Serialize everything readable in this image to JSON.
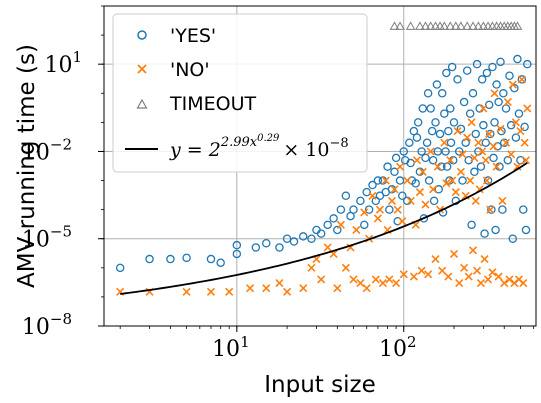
{
  "chart_data": {
    "type": "scatter",
    "xlabel": "Input size",
    "ylabel": "AMV running time (s)",
    "x_scale": "log",
    "y_scale": "log",
    "xlim": [
      1.6,
      620
    ],
    "ylim": [
      1e-08,
      1000
    ],
    "grid": true,
    "legend_position": "top-left",
    "x_ticks": [
      {
        "value": 10,
        "base": "10",
        "exp": "1"
      },
      {
        "value": 100,
        "base": "10",
        "exp": "2"
      }
    ],
    "y_ticks": [
      {
        "value": 1e-08,
        "base": "10",
        "exp": "−8"
      },
      {
        "value": 1e-05,
        "base": "10",
        "exp": "−5"
      },
      {
        "value": 0.01,
        "base": "10",
        "exp": "−2"
      },
      {
        "value": 10,
        "base": "10",
        "exp": "1"
      }
    ],
    "series": [
      {
        "name": "'YES'",
        "marker": "circle",
        "color": "#1f77b4",
        "points": [
          [
            2,
            1e-06
          ],
          [
            3,
            2e-06
          ],
          [
            4,
            2e-06
          ],
          [
            5,
            2.2e-06
          ],
          [
            7,
            2e-06
          ],
          [
            8,
            1.5e-06
          ],
          [
            10,
            3e-06
          ],
          [
            10,
            6e-06
          ],
          [
            13,
            5e-06
          ],
          [
            15,
            7e-06
          ],
          [
            18,
            5e-06
          ],
          [
            20,
            1e-05
          ],
          [
            22,
            8e-06
          ],
          [
            25,
            1.2e-05
          ],
          [
            28,
            1e-05
          ],
          [
            30,
            2e-05
          ],
          [
            32,
            1.5e-05
          ],
          [
            35,
            3e-05
          ],
          [
            38,
            5e-05
          ],
          [
            40,
            2e-05
          ],
          [
            42,
            0.0001
          ],
          [
            45,
            0.0003
          ],
          [
            48,
            6e-05
          ],
          [
            50,
            0.0001
          ],
          [
            55,
            0.0002
          ],
          [
            58,
            3e-05
          ],
          [
            60,
            0.0004
          ],
          [
            62,
            0.0001
          ],
          [
            65,
            0.0007
          ],
          [
            68,
            0.0002
          ],
          [
            70,
            0.001
          ],
          [
            72,
            0.0003
          ],
          [
            75,
            0.001
          ],
          [
            78,
            0.0004
          ],
          [
            80,
            0.003
          ],
          [
            82,
            0.0001
          ],
          [
            85,
            0.0005
          ],
          [
            88,
            0.002
          ],
          [
            90,
            0.006
          ],
          [
            92,
            4e-05
          ],
          [
            95,
            0.001
          ],
          [
            98,
            0.0003
          ],
          [
            100,
            0.01
          ],
          [
            102,
            0.005
          ],
          [
            105,
            0.0002
          ],
          [
            108,
            0.02
          ],
          [
            110,
            0.004
          ],
          [
            112,
            0.001
          ],
          [
            115,
            0.05
          ],
          [
            118,
            0.0008
          ],
          [
            120,
            0.03
          ],
          [
            122,
            0.1
          ],
          [
            125,
            0.002
          ],
          [
            128,
            0.01
          ],
          [
            130,
            0.3
          ],
          [
            132,
            5e-05
          ],
          [
            135,
            0.006
          ],
          [
            138,
            0.02
          ],
          [
            140,
            1
          ],
          [
            142,
            0.001
          ],
          [
            145,
            0.3
          ],
          [
            148,
            0.05
          ],
          [
            150,
            0.005
          ],
          [
            152,
            0.0002
          ],
          [
            155,
            0.1
          ],
          [
            158,
            2
          ],
          [
            160,
            0.01
          ],
          [
            162,
            0.0005
          ],
          [
            165,
            0.04
          ],
          [
            168,
            0.003
          ],
          [
            170,
            1
          ],
          [
            172,
            8e-05
          ],
          [
            175,
            0.2
          ],
          [
            178,
            0.01
          ],
          [
            180,
            5
          ],
          [
            182,
            0.003
          ],
          [
            185,
            0.05
          ],
          [
            188,
            0.001
          ],
          [
            190,
            0.3
          ],
          [
            192,
            0.02
          ],
          [
            195,
            8
          ],
          [
            198,
            0.005
          ],
          [
            200,
            0.1
          ],
          [
            205,
            0.0002
          ],
          [
            210,
            3
          ],
          [
            215,
            0.01
          ],
          [
            220,
            0.06
          ],
          [
            225,
            0.001
          ],
          [
            230,
            0.5
          ],
          [
            235,
            0.02
          ],
          [
            240,
            6
          ],
          [
            245,
            0.005
          ],
          [
            250,
            0.2
          ],
          [
            255,
            3e-05
          ],
          [
            260,
            1
          ],
          [
            265,
            0.002
          ],
          [
            270,
            0.04
          ],
          [
            275,
            10
          ],
          [
            280,
            0.01
          ],
          [
            285,
            0.3
          ],
          [
            290,
            0.003
          ],
          [
            295,
            3
          ],
          [
            300,
            0.08
          ],
          [
            305,
            1.5e-05
          ],
          [
            310,
            0.02
          ],
          [
            315,
            5
          ],
          [
            320,
            0.001
          ],
          [
            325,
            0.4
          ],
          [
            330,
            0.04
          ],
          [
            335,
            0.0001
          ],
          [
            340,
            8
          ],
          [
            345,
            0.006
          ],
          [
            350,
            0.1
          ],
          [
            355,
            2e-05
          ],
          [
            360,
            2
          ],
          [
            365,
            0.015
          ],
          [
            370,
            0.5
          ],
          [
            375,
            0.003
          ],
          [
            380,
            12
          ],
          [
            385,
            0.05
          ],
          [
            390,
            0.0001
          ],
          [
            395,
            1
          ],
          [
            400,
            0.02
          ],
          [
            410,
            0.3
          ],
          [
            420,
            0.005
          ],
          [
            430,
            4
          ],
          [
            440,
            0.08
          ],
          [
            450,
            1e-05
          ],
          [
            460,
            1.5
          ],
          [
            470,
            0.03
          ],
          [
            480,
            15
          ],
          [
            490,
            0.2
          ],
          [
            500,
            0.005
          ],
          [
            510,
            3
          ],
          [
            520,
            0.0001
          ],
          [
            530,
            0.07
          ],
          [
            540,
            2e-05
          ],
          [
            550,
            10
          ]
        ]
      },
      {
        "name": "'NO'",
        "marker": "x",
        "color": "#ff7f0e",
        "points": [
          [
            2,
            1.5e-07
          ],
          [
            3,
            1.5e-07
          ],
          [
            5,
            1.5e-07
          ],
          [
            7,
            1.5e-07
          ],
          [
            9,
            1.5e-07
          ],
          [
            12,
            2e-07
          ],
          [
            15,
            2e-07
          ],
          [
            18,
            3e-07
          ],
          [
            20,
            1.5e-07
          ],
          [
            25,
            2e-07
          ],
          [
            28,
            1e-06
          ],
          [
            30,
            2e-06
          ],
          [
            32,
            4e-07
          ],
          [
            35,
            5e-06
          ],
          [
            38,
            3e-06
          ],
          [
            40,
            2e-07
          ],
          [
            42,
            3e-05
          ],
          [
            45,
            1e-06
          ],
          [
            48,
            5e-06
          ],
          [
            50,
            4e-07
          ],
          [
            52,
            2e-05
          ],
          [
            55,
            3e-07
          ],
          [
            58,
            8e-05
          ],
          [
            60,
            2e-07
          ],
          [
            62,
            1e-05
          ],
          [
            65,
            0.0003
          ],
          [
            68,
            4e-07
          ],
          [
            70,
            5e-05
          ],
          [
            72,
            0.0001
          ],
          [
            75,
            3e-07
          ],
          [
            78,
            0.001
          ],
          [
            80,
            2e-05
          ],
          [
            82,
            4e-07
          ],
          [
            85,
            0.0002
          ],
          [
            88,
            0.0005
          ],
          [
            90,
            3e-07
          ],
          [
            92,
            0.0001
          ],
          [
            95,
            0.003
          ],
          [
            98,
            4e-05
          ],
          [
            100,
            6e-07
          ],
          [
            105,
            0.001
          ],
          [
            110,
            0.0002
          ],
          [
            115,
            5e-07
          ],
          [
            118,
            3e-05
          ],
          [
            120,
            0.005
          ],
          [
            125,
            0.0004
          ],
          [
            128,
            8e-07
          ],
          [
            130,
            0.002
          ],
          [
            135,
            0.00015
          ],
          [
            140,
            6e-07
          ],
          [
            145,
            0.01
          ],
          [
            150,
            0.0005
          ],
          [
            155,
            2e-06
          ],
          [
            160,
            0.003
          ],
          [
            165,
            0.0001
          ],
          [
            170,
            8e-07
          ],
          [
            175,
            0.02
          ],
          [
            180,
            0.0008
          ],
          [
            185,
            5e-07
          ],
          [
            190,
            0.005
          ],
          [
            195,
            0.001
          ],
          [
            200,
            3e-06
          ],
          [
            205,
            0.0004
          ],
          [
            210,
            0.05
          ],
          [
            215,
            3e-07
          ],
          [
            220,
            0.002
          ],
          [
            225,
            0.008
          ],
          [
            230,
            1e-06
          ],
          [
            235,
            0.0003
          ],
          [
            240,
            0.03
          ],
          [
            245,
            5e-07
          ],
          [
            250,
            0.001
          ],
          [
            255,
            0.1
          ],
          [
            260,
            4e-06
          ],
          [
            265,
            0.006
          ],
          [
            270,
            0.0002
          ],
          [
            275,
            8e-07
          ],
          [
            280,
            0.02
          ],
          [
            285,
            0.0005
          ],
          [
            290,
            3e-07
          ],
          [
            295,
            0.01
          ],
          [
            300,
            0.3
          ],
          [
            305,
            2e-06
          ],
          [
            310,
            0.005
          ],
          [
            315,
            0.001
          ],
          [
            320,
            4e-07
          ],
          [
            325,
            0.04
          ],
          [
            330,
            0.0001
          ],
          [
            340,
            7e-07
          ],
          [
            345,
            0.015
          ],
          [
            350,
            1
          ],
          [
            360,
            0.003
          ],
          [
            370,
            5e-07
          ],
          [
            380,
            0.06
          ],
          [
            390,
            0.0002
          ],
          [
            400,
            3e-07
          ],
          [
            410,
            0.02
          ],
          [
            420,
            0.5
          ],
          [
            430,
            4e-07
          ],
          [
            440,
            0.008
          ],
          [
            450,
            2
          ],
          [
            460,
            3e-07
          ],
          [
            470,
            0.1
          ],
          [
            480,
            0.003
          ],
          [
            490,
            4e-07
          ],
          [
            500,
            0.05
          ],
          [
            510,
            3
          ],
          [
            520,
            3e-07
          ],
          [
            530,
            0.02
          ],
          [
            540,
            0.005
          ],
          [
            550,
            0.3
          ]
        ]
      },
      {
        "name": "TIMEOUT",
        "marker": "triangle",
        "color": "#7f7f7f",
        "points": [
          [
            88,
            200
          ],
          [
            95,
            200
          ],
          [
            110,
            200
          ],
          [
            125,
            200
          ],
          [
            135,
            200
          ],
          [
            145,
            200
          ],
          [
            155,
            200
          ],
          [
            165,
            200
          ],
          [
            175,
            200
          ],
          [
            190,
            200
          ],
          [
            205,
            200
          ],
          [
            220,
            200
          ],
          [
            240,
            200
          ],
          [
            260,
            200
          ],
          [
            280,
            200
          ],
          [
            300,
            200
          ],
          [
            320,
            200
          ],
          [
            340,
            200
          ],
          [
            360,
            200
          ],
          [
            380,
            200
          ],
          [
            400,
            200
          ],
          [
            420,
            200
          ],
          [
            440,
            200
          ],
          [
            460,
            200
          ],
          [
            480,
            200
          ]
        ]
      }
    ],
    "fit_line": {
      "name_prefix": "y = 2",
      "name_exponent": "2.99x",
      "name_exponent_power": "0.29",
      "name_suffix": "× 10",
      "name_suffix_power": "−8",
      "color": "#000000",
      "coef_a": 2.99,
      "coef_b": 0.29,
      "scale": 1e-08
    }
  }
}
